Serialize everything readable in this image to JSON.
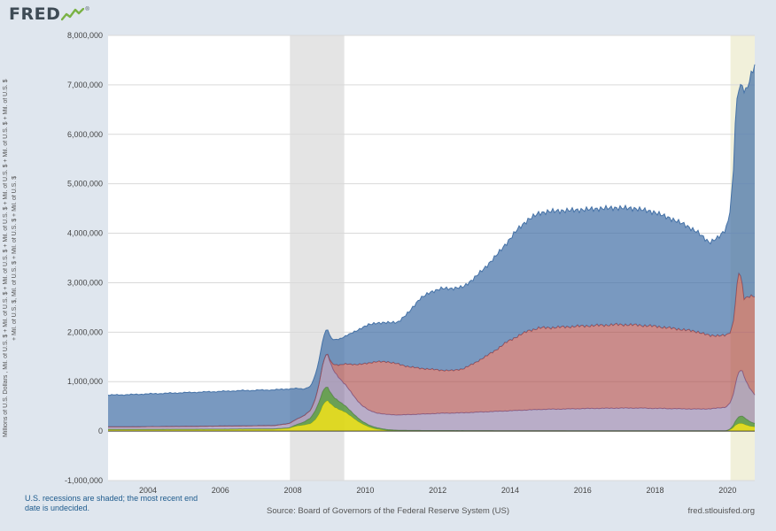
{
  "page": {
    "background": "#dfe6ee"
  },
  "header": {
    "logo_text": "FRED",
    "registered_mark": "®",
    "logo_color": "#3e4b55",
    "sparkline_color": "#7ab244"
  },
  "axis": {
    "y_title_line1": "Millions of U.S. Dollars , Mil. of U.S. $ + Mil. of U.S. $ + Mil. of U.S. $ + Mil. of U.S. $ + Mil. of U.S. $ + Mil. of U.S. $ + Mil. of U.S. $",
    "y_title_line2": "+ Mil. of U.S. $, Mil. of U.S. $ + Mil. of U.S. $ + Mil. of U.S. $"
  },
  "footer": {
    "note": "U.S. recessions are shaded; the most recent end date is undecided.",
    "note_color": "#1e5b8d",
    "source": "Source: Board of Governors of the Federal Reserve System (US)",
    "site": "fred.stlouisfed.org"
  },
  "chart_data": {
    "type": "area",
    "stacked": true,
    "grid": true,
    "xlim": [
      2002.9,
      2020.75
    ],
    "ylim": [
      -1000000,
      8000000
    ],
    "y_tick_step": 1000000,
    "x_ticks": [
      2004,
      2006,
      2008,
      2010,
      2012,
      2014,
      2016,
      2018,
      2020
    ],
    "recessions": [
      {
        "start": 2007.92,
        "end": 2009.42,
        "color": "#e4e4e4",
        "label": "recession"
      },
      {
        "start": 2020.08,
        "end": 2020.75,
        "color": "#f1f0da",
        "label": "recession-end-undecided"
      }
    ],
    "x_years": [
      2002.9,
      2003.5,
      2004,
      2004.5,
      2005,
      2005.5,
      2006,
      2006.5,
      2007,
      2007.5,
      2007.9,
      2008.1,
      2008.3,
      2008.5,
      2008.65,
      2008.75,
      2008.85,
      2008.95,
      2009.05,
      2009.15,
      2009.3,
      2009.45,
      2009.6,
      2009.75,
      2009.9,
      2010.1,
      2010.3,
      2010.6,
      2010.9,
      2011.2,
      2011.5,
      2011.8,
      2012.1,
      2012.4,
      2012.7,
      2013,
      2013.3,
      2013.6,
      2013.9,
      2014.2,
      2014.5,
      2014.8,
      2015.1,
      2015.5,
      2016,
      2016.5,
      2017,
      2017.5,
      2018,
      2018.4,
      2018.8,
      2019.2,
      2019.5,
      2019.75,
      2019.95,
      2020.05,
      2020.15,
      2020.22,
      2020.3,
      2020.38,
      2020.45,
      2020.52,
      2020.6,
      2020.68,
      2020.75
    ],
    "series": [
      {
        "name": "yellow",
        "color": "#ddd60e",
        "fill_opacity": 0.9,
        "values": [
          30000,
          30000,
          32000,
          33000,
          34000,
          35000,
          36000,
          38000,
          40000,
          42000,
          60000,
          100000,
          120000,
          150000,
          250000,
          380000,
          560000,
          620000,
          540000,
          480000,
          430000,
          380000,
          300000,
          220000,
          150000,
          80000,
          40000,
          10000,
          5000,
          3000,
          3000,
          3000,
          3000,
          3000,
          3000,
          3000,
          3000,
          3000,
          3000,
          3000,
          3000,
          3000,
          3000,
          3000,
          2000,
          2000,
          2000,
          2000,
          2000,
          2000,
          2000,
          2000,
          2000,
          2000,
          2000,
          20000,
          60000,
          120000,
          150000,
          160000,
          140000,
          120000,
          100000,
          90000,
          85000
        ]
      },
      {
        "name": "green",
        "color": "#55943c",
        "fill_opacity": 0.85,
        "values": [
          2000,
          2000,
          2000,
          2000,
          2000,
          2000,
          2000,
          2000,
          2000,
          2000,
          5000,
          30000,
          60000,
          120000,
          200000,
          260000,
          290000,
          280000,
          220000,
          190000,
          160000,
          130000,
          100000,
          75000,
          55000,
          40000,
          30000,
          20000,
          12000,
          10000,
          9000,
          8000,
          8000,
          7000,
          7000,
          6000,
          6000,
          5000,
          5000,
          5000,
          5000,
          4000,
          4000,
          4000,
          3000,
          3000,
          3000,
          3000,
          3000,
          3000,
          3000,
          3000,
          3000,
          3000,
          3000,
          10000,
          40000,
          90000,
          130000,
          150000,
          140000,
          120000,
          100000,
          80000,
          70000
        ]
      },
      {
        "name": "purple",
        "color": "#80699b",
        "fill_opacity": 0.55,
        "values": [
          55000,
          55000,
          57000,
          58000,
          60000,
          62000,
          64000,
          66000,
          68000,
          70000,
          90000,
          110000,
          130000,
          160000,
          260000,
          420000,
          600000,
          680000,
          580000,
          520000,
          470000,
          430000,
          390000,
          350000,
          320000,
          300000,
          300000,
          305000,
          310000,
          320000,
          330000,
          340000,
          350000,
          355000,
          360000,
          370000,
          380000,
          390000,
          400000,
          410000,
          420000,
          430000,
          435000,
          440000,
          450000,
          455000,
          460000,
          460000,
          455000,
          450000,
          445000,
          440000,
          445000,
          460000,
          480000,
          520000,
          600000,
          750000,
          900000,
          950000,
          850000,
          750000,
          680000,
          620000,
          580000
        ]
      },
      {
        "name": "red",
        "color": "#aa4643",
        "fill_opacity": 0.62,
        "values": [
          0,
          0,
          0,
          0,
          0,
          0,
          0,
          0,
          0,
          0,
          0,
          0,
          0,
          0,
          0,
          0,
          0,
          0,
          50000,
          150000,
          280000,
          420000,
          560000,
          700000,
          830000,
          960000,
          1030000,
          1070000,
          1030000,
          970000,
          930000,
          900000,
          870000,
          860000,
          890000,
          990000,
          1110000,
          1240000,
          1390000,
          1500000,
          1600000,
          1650000,
          1650000,
          1660000,
          1670000,
          1680000,
          1690000,
          1680000,
          1660000,
          1630000,
          1600000,
          1560000,
          1480000,
          1470000,
          1450000,
          1420000,
          1450000,
          1700000,
          2050000,
          1850000,
          1550000,
          1700000,
          1850000,
          1950000,
          2000000
        ]
      },
      {
        "name": "blue",
        "color": "#4572a7",
        "fill_opacity": 0.72,
        "values": [
          640000,
          650000,
          660000,
          670000,
          680000,
          690000,
          700000,
          710000,
          715000,
          720000,
          700000,
          620000,
          540000,
          480000,
          480000,
          480000,
          490000,
          500000,
          480000,
          500000,
          530000,
          560000,
          620000,
          680000,
          730000,
          776000,
          780000,
          790000,
          840000,
          1100000,
          1400000,
          1560000,
          1650000,
          1660000,
          1650000,
          1720000,
          1800000,
          1900000,
          2000000,
          2160000,
          2250000,
          2320000,
          2350000,
          2350000,
          2350000,
          2360000,
          2360000,
          2350000,
          2300000,
          2220000,
          2130000,
          2000000,
          1880000,
          1980000,
          2150000,
          2380000,
          2900000,
          3700000,
          3700000,
          3900000,
          4250000,
          4200000,
          4350000,
          4500000,
          4650000
        ]
      }
    ]
  }
}
